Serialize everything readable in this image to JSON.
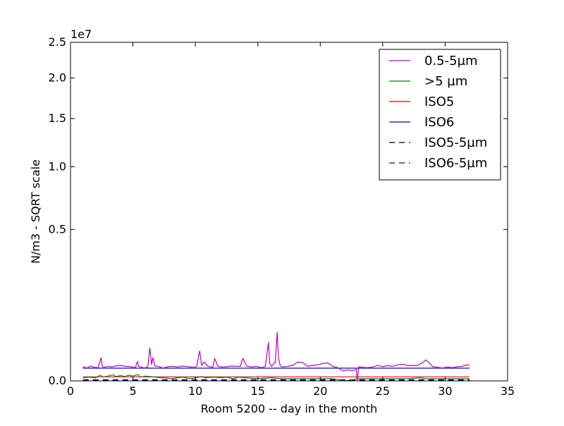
{
  "chart_data": {
    "type": "line",
    "title": "",
    "xlabel": "Room 5200 -- day in the month",
    "ylabel": "N/m3 - SQRT scale",
    "y_scale": "sqrt",
    "y_offset_text": "1e7",
    "xlim": [
      0,
      35
    ],
    "ylim": [
      0,
      2.5
    ],
    "x_ticks": [
      0,
      5,
      10,
      15,
      20,
      25,
      30,
      35
    ],
    "x_tick_labels": [
      "0",
      "5",
      "10",
      "15",
      "20",
      "25",
      "30",
      "35"
    ],
    "y_ticks": [
      0.0,
      0.5,
      1.0,
      1.5,
      2.0,
      2.5
    ],
    "y_tick_labels": [
      "0.0",
      "0.5",
      "1.0",
      "1.5",
      "2.0",
      "2.5"
    ],
    "grid": false,
    "legend_position": "top-right",
    "series": [
      {
        "name": "0.5-5µm",
        "color": "#bf00bf",
        "style": "solid",
        "x": [
          1.0,
          1.3,
          1.6,
          1.9,
          2.2,
          2.45,
          2.55,
          2.7,
          3.0,
          3.3,
          3.6,
          4.0,
          4.4,
          4.8,
          5.2,
          5.35,
          5.45,
          5.6,
          5.9,
          6.2,
          6.35,
          6.5,
          6.6,
          6.75,
          7.0,
          7.4,
          7.8,
          8.2,
          8.6,
          9.0,
          9.4,
          9.8,
          10.1,
          10.35,
          10.5,
          10.7,
          11.0,
          11.4,
          11.55,
          11.8,
          12.1,
          12.5,
          12.9,
          13.3,
          13.6,
          13.8,
          14.1,
          14.5,
          14.9,
          15.3,
          15.6,
          15.85,
          15.95,
          16.1,
          16.4,
          16.55,
          16.65,
          16.8,
          17.0,
          17.4,
          17.8,
          18.2,
          18.6,
          19.0,
          19.4,
          19.8,
          20.2,
          20.6,
          21.0,
          21.4,
          21.8,
          22.2,
          22.6,
          22.9,
          22.95,
          23.1,
          23.4,
          23.8,
          24.2,
          24.6,
          25.0,
          25.4,
          25.8,
          26.2,
          26.6,
          27.0,
          27.4,
          27.8,
          28.2,
          28.45,
          28.7,
          29.0,
          29.4,
          29.8,
          30.2,
          30.6,
          31.0,
          31.4,
          31.7,
          31.95
        ],
        "values": [
          0.0044,
          0.0035,
          0.0048,
          0.004,
          0.0038,
          0.0117,
          0.0044,
          0.004,
          0.0046,
          0.0042,
          0.0048,
          0.0052,
          0.0046,
          0.0044,
          0.0038,
          0.0082,
          0.0046,
          0.0044,
          0.0036,
          0.0044,
          0.0238,
          0.0058,
          0.0118,
          0.0048,
          0.0046,
          0.0036,
          0.0044,
          0.0046,
          0.0042,
          0.0048,
          0.0044,
          0.004,
          0.0044,
          0.0195,
          0.0052,
          0.0078,
          0.0046,
          0.004,
          0.0109,
          0.0046,
          0.0042,
          0.0044,
          0.0048,
          0.0046,
          0.0046,
          0.0111,
          0.0048,
          0.0042,
          0.0046,
          0.0038,
          0.0046,
          0.0323,
          0.0068,
          0.0046,
          0.0078,
          0.0514,
          0.012,
          0.0048,
          0.0042,
          0.0046,
          0.0052,
          0.0077,
          0.0072,
          0.0046,
          0.0052,
          0.0056,
          0.0066,
          0.007,
          0.0046,
          0.0038,
          0.0022,
          0.0026,
          0.0022,
          0.003,
          0.0,
          0.0044,
          0.004,
          0.0038,
          0.0042,
          0.0052,
          0.0044,
          0.005,
          0.0046,
          0.0056,
          0.006,
          0.0052,
          0.005,
          0.0052,
          0.0072,
          0.0096,
          0.0074,
          0.0044,
          0.004,
          0.0036,
          0.0042,
          0.0038,
          0.0044,
          0.0046,
          0.0056,
          0.0052
        ]
      },
      {
        "name": ">5 µm",
        "color": "#008000",
        "style": "solid",
        "x": [
          1.0,
          1.5,
          2.0,
          2.4,
          2.6,
          3.0,
          3.4,
          3.6,
          4.0,
          4.4,
          4.6,
          5.0,
          5.4,
          5.6,
          6.0,
          6.4,
          6.8,
          7.2,
          7.6,
          8.0,
          9.0,
          9.5,
          10.0,
          10.5,
          10.8,
          11.5,
          12.0,
          12.5,
          13.0,
          13.5,
          14.0,
          15.0,
          16.0,
          17.0,
          18.0,
          19.0,
          20.0,
          21.0,
          22.0,
          23.0,
          24.0,
          25.0,
          26.0,
          27.0,
          28.0,
          28.5,
          29.0,
          30.0,
          31.0,
          31.95
        ],
        "values": [
          0.0002,
          0.0003,
          0.0002,
          0.0007,
          0.0003,
          0.0005,
          0.0008,
          0.0004,
          0.0006,
          0.0004,
          0.0007,
          0.0005,
          0.0009,
          0.0003,
          0.0005,
          0.0004,
          0.0003,
          0.0002,
          0.0002,
          0.0001,
          0.0003,
          0.0001,
          0.0002,
          0.0004,
          0.0002,
          0.0003,
          0.0002,
          0.0003,
          0.0001,
          0.0003,
          0.0002,
          0.0001,
          0.0002,
          0.0001,
          0.0001,
          0.0001,
          0.0001,
          0.0001,
          0.0,
          0.0001,
          0.0001,
          0.0001,
          0.0001,
          0.0001,
          0.0002,
          0.0001,
          0.0001,
          0.0001,
          0.0001,
          0.0001
        ]
      },
      {
        "name": "ISO5",
        "color": "#ff0000",
        "style": "solid",
        "x": [
          1.0,
          31.95
        ],
        "values": [
          0.000352,
          0.000352
        ]
      },
      {
        "name": "ISO6",
        "color": "#0000ff",
        "style": "solid",
        "x": [
          1.0,
          31.95
        ],
        "values": [
          0.00352,
          0.00352
        ]
      },
      {
        "name": "ISO5-5µm",
        "color": "#000000",
        "style": "dashed",
        "x": [
          1.0,
          31.95
        ],
        "values": [
          2.9e-06,
          2.9e-06
        ]
      },
      {
        "name": "ISO6-5µm",
        "color": "#0000ff",
        "style": "dashed",
        "x": [
          1.0,
          31.95
        ],
        "values": [
          2.93e-05,
          2.93e-05
        ]
      }
    ]
  }
}
